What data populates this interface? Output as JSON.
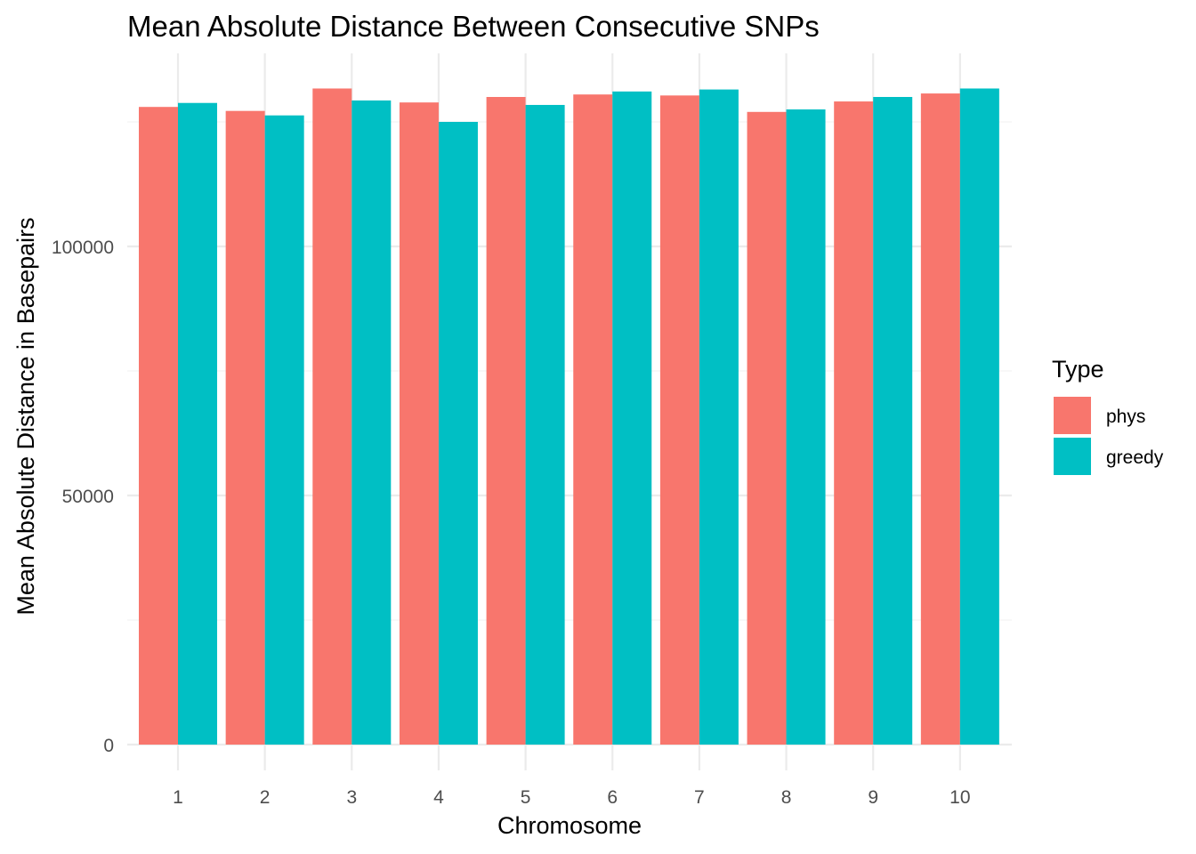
{
  "chart_data": {
    "type": "bar",
    "title": "Mean Absolute Distance Between Consecutive SNPs",
    "xlabel": "Chromosome",
    "ylabel": "Mean Absolute Distance in Basepairs",
    "categories": [
      "1",
      "2",
      "3",
      "4",
      "5",
      "6",
      "7",
      "8",
      "9",
      "10"
    ],
    "series": [
      {
        "name": "phys",
        "color": "#F8766D",
        "values": [
          128000,
          127200,
          131700,
          128900,
          130000,
          130500,
          130300,
          127000,
          129100,
          130700
        ]
      },
      {
        "name": "greedy",
        "color": "#00BFC4",
        "values": [
          128800,
          126300,
          129300,
          125000,
          128400,
          131100,
          131500,
          127500,
          130000,
          131700
        ]
      }
    ],
    "ylim": [
      0,
      137000
    ],
    "yticks": [
      0,
      50000,
      100000
    ],
    "yticks_labels": [
      "0",
      "50000",
      "100000"
    ],
    "grid": true,
    "legend": {
      "title": "Type",
      "position": "right"
    }
  }
}
